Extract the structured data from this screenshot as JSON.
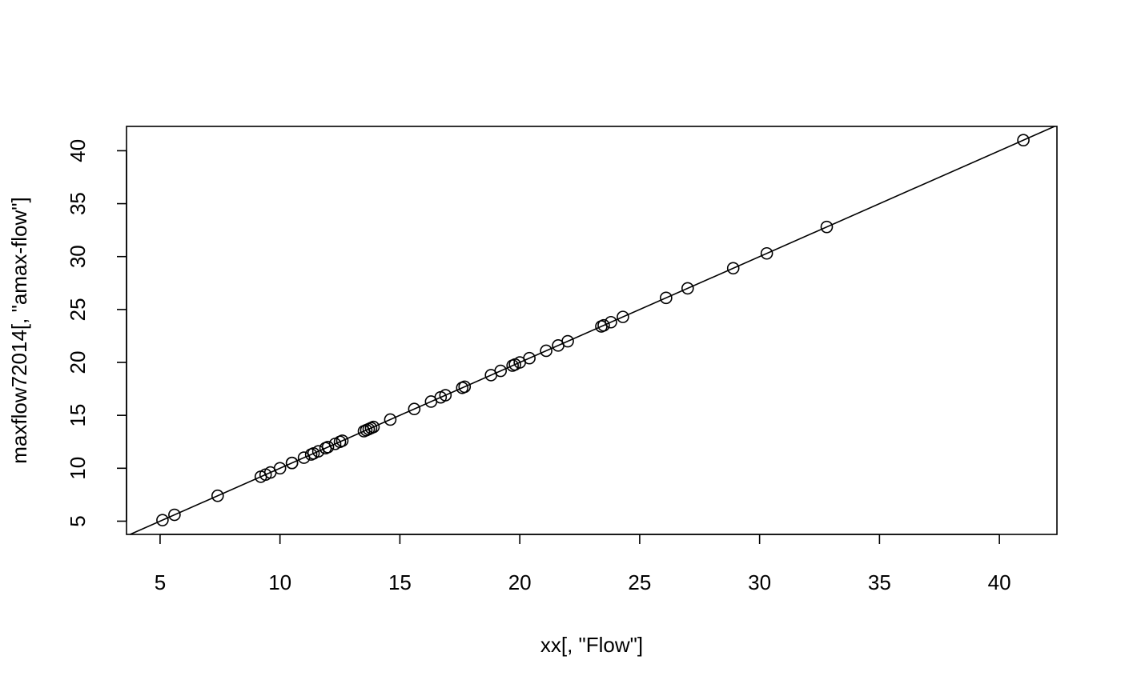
{
  "chart_data": {
    "type": "scatter",
    "title": "",
    "xlabel": "xx[, \"Flow\"]",
    "ylabel": "maxflow72014[, \"amax-flow\"]",
    "xlim": [
      3.6,
      42.4
    ],
    "ylim": [
      3.75,
      42.3
    ],
    "xticks": [
      5,
      10,
      15,
      20,
      25,
      30,
      35,
      40
    ],
    "yticks": [
      5,
      10,
      15,
      20,
      25,
      30,
      35,
      40
    ],
    "grid": false,
    "reference_line": {
      "slope": 1,
      "intercept": 0
    },
    "series": [
      {
        "x": [
          5.1,
          5.6,
          7.4,
          9.2,
          9.4,
          9.6,
          10.0,
          10.5,
          10.5,
          11.0,
          11.3,
          11.4,
          11.6,
          11.9,
          12.0,
          12.3,
          12.5,
          12.6,
          13.5,
          13.6,
          13.7,
          13.8,
          13.9,
          14.6,
          15.6,
          16.3,
          16.7,
          16.9,
          17.6,
          17.7,
          18.8,
          19.2,
          19.7,
          19.8,
          20.0,
          20.4,
          21.1,
          21.6,
          22.0,
          23.4,
          23.5,
          23.8,
          24.3,
          26.1,
          27.0,
          28.9,
          30.3,
          32.8,
          41.0
        ],
        "y": [
          5.1,
          5.6,
          7.4,
          9.2,
          9.4,
          9.6,
          10.0,
          10.5,
          10.5,
          11.0,
          11.3,
          11.4,
          11.6,
          11.9,
          12.0,
          12.3,
          12.5,
          12.6,
          13.5,
          13.6,
          13.7,
          13.8,
          13.9,
          14.6,
          15.6,
          16.3,
          16.7,
          16.9,
          17.6,
          17.7,
          18.8,
          19.2,
          19.7,
          19.8,
          20.0,
          20.4,
          21.1,
          21.6,
          22.0,
          23.4,
          23.5,
          23.8,
          24.3,
          26.1,
          27.0,
          28.9,
          30.3,
          32.8,
          41.0
        ]
      }
    ]
  }
}
